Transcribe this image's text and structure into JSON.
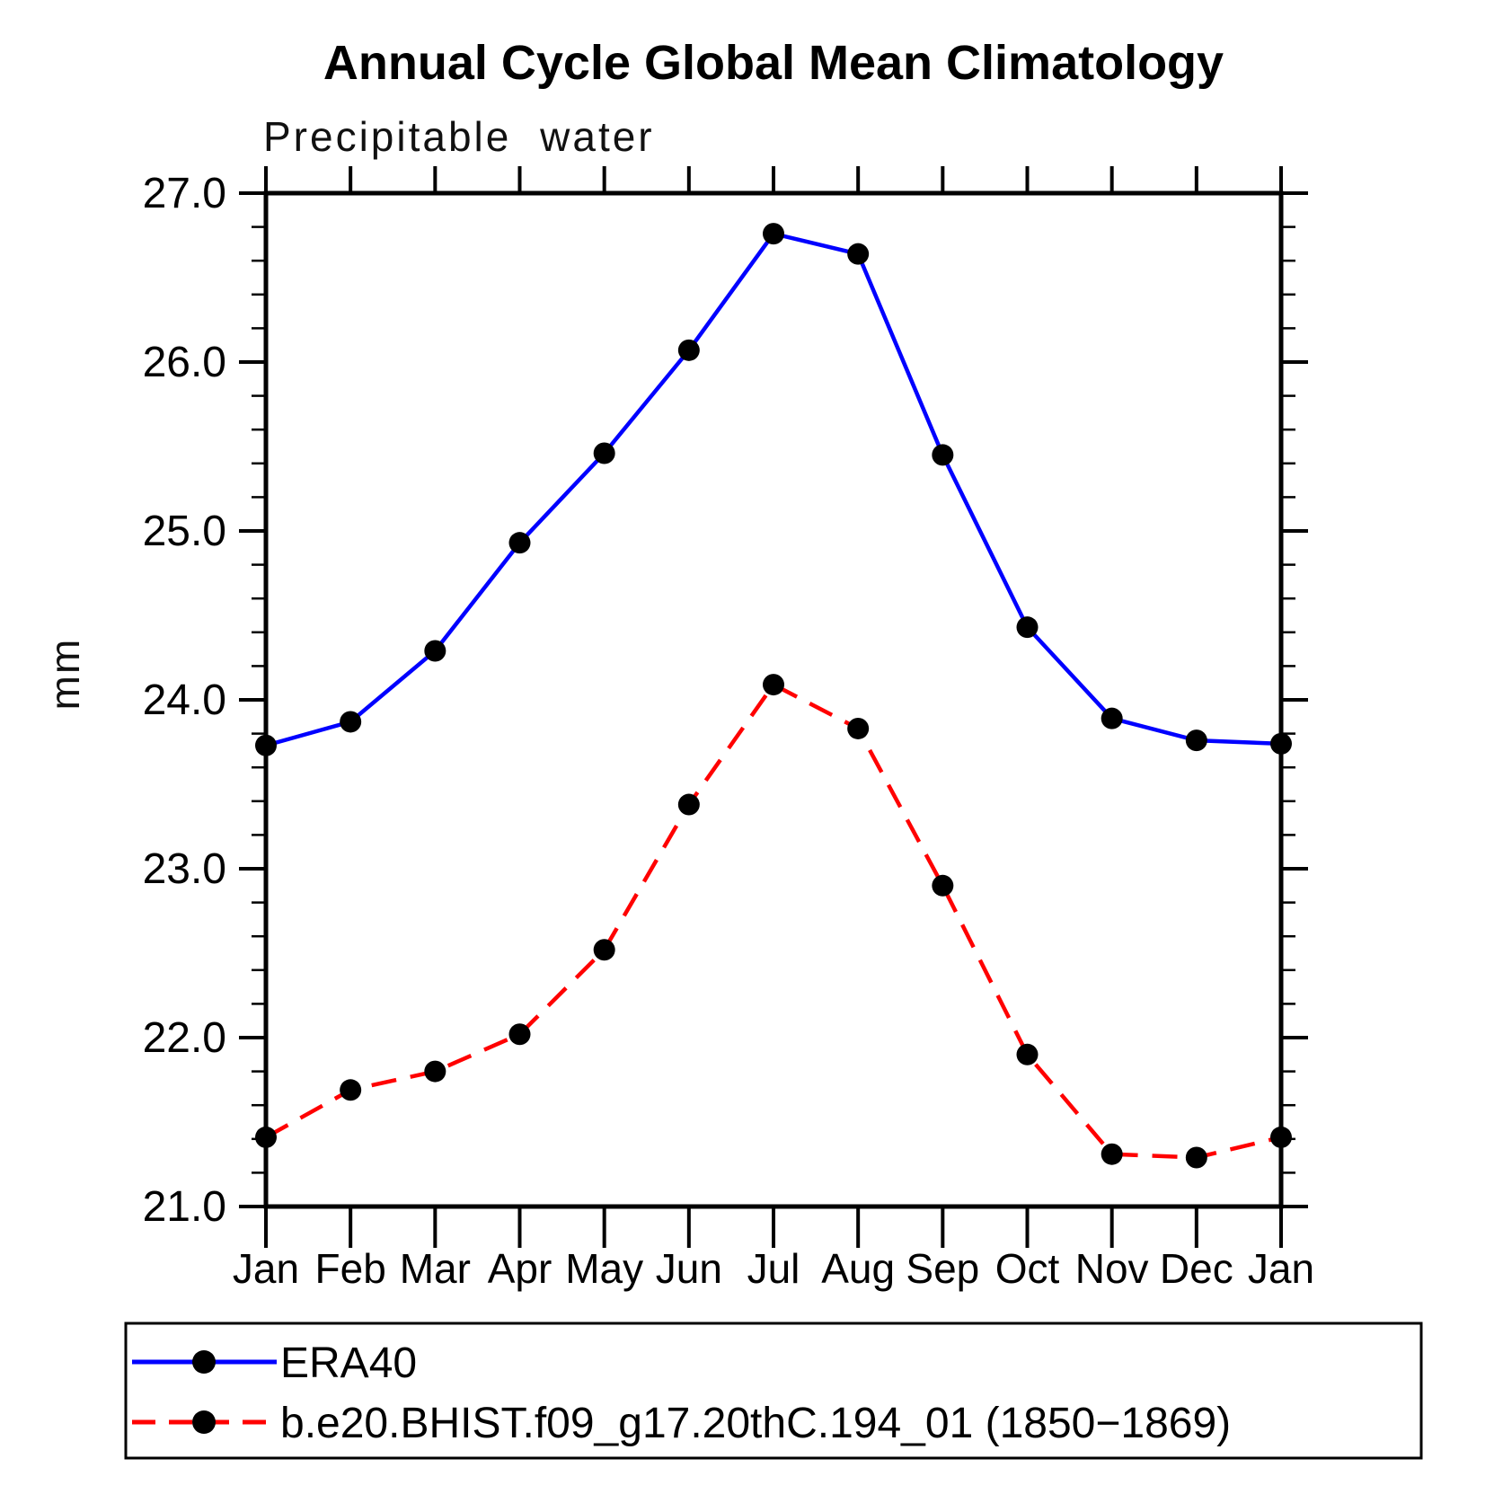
{
  "title": "Annual Cycle Global Mean Climatology",
  "subtitle": "Precipitable water",
  "ylabel": "mm",
  "chart_data": {
    "type": "line",
    "x_categories": [
      "Jan",
      "Feb",
      "Mar",
      "Apr",
      "May",
      "Jun",
      "Jul",
      "Aug",
      "Sep",
      "Oct",
      "Nov",
      "Dec",
      "Jan"
    ],
    "ylim": [
      21.0,
      27.0
    ],
    "ytick_labels": [
      "21.0",
      "22.0",
      "23.0",
      "24.0",
      "25.0",
      "26.0",
      "27.0"
    ],
    "ytick_values": [
      21.0,
      22.0,
      23.0,
      24.0,
      25.0,
      26.0,
      27.0
    ],
    "minor_tick_step": 0.2,
    "grid": false,
    "legend_position": "bottom",
    "axis_color": "#000000",
    "marker_color": "#000000",
    "series": [
      {
        "name": "ERA40",
        "color": "#0000ff",
        "style": "solid",
        "marker": "circle",
        "values": [
          23.73,
          23.87,
          24.29,
          24.93,
          25.46,
          26.07,
          26.76,
          26.64,
          25.45,
          24.43,
          23.89,
          23.76,
          23.74
        ]
      },
      {
        "name": "b.e20.BHIST.f09_g17.20thC.194_01 (1850−1869)",
        "color": "#ff0000",
        "style": "dashed",
        "marker": "circle",
        "values": [
          21.41,
          21.69,
          21.8,
          22.02,
          22.52,
          23.38,
          24.09,
          23.83,
          22.9,
          21.9,
          21.31,
          21.29,
          21.41
        ]
      }
    ]
  }
}
